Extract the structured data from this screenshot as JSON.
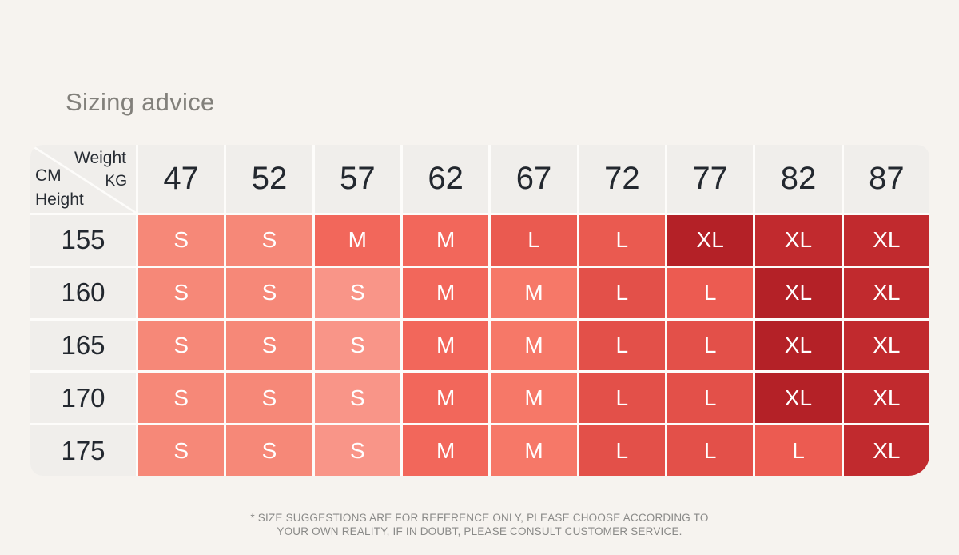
{
  "page": {
    "title": "Sizing advice",
    "background": "#f6f3ef"
  },
  "table": {
    "corner": {
      "top": "Weight",
      "left": "CM",
      "right": "KG",
      "bottom": "Height"
    },
    "weight_columns": [
      "47",
      "52",
      "57",
      "62",
      "67",
      "72",
      "77",
      "82",
      "87"
    ],
    "height_rows": [
      "155",
      "160",
      "165",
      "170",
      "175"
    ],
    "cells": [
      [
        {
          "size": "S",
          "color": "#f68878"
        },
        {
          "size": "S",
          "color": "#f68878"
        },
        {
          "size": "M",
          "color": "#f2675b"
        },
        {
          "size": "M",
          "color": "#f2675b"
        },
        {
          "size": "L",
          "color": "#ea5a50"
        },
        {
          "size": "L",
          "color": "#ea5a50"
        },
        {
          "size": "XL",
          "color": "#b42127"
        },
        {
          "size": "XL",
          "color": "#c12a2e"
        },
        {
          "size": "XL",
          "color": "#c12a2e"
        }
      ],
      [
        {
          "size": "S",
          "color": "#f68878"
        },
        {
          "size": "S",
          "color": "#f68878"
        },
        {
          "size": "S",
          "color": "#f99588"
        },
        {
          "size": "M",
          "color": "#f2675b"
        },
        {
          "size": "M",
          "color": "#f67868"
        },
        {
          "size": "L",
          "color": "#e35049"
        },
        {
          "size": "L",
          "color": "#ec5b51"
        },
        {
          "size": "XL",
          "color": "#b42127"
        },
        {
          "size": "XL",
          "color": "#c12a2e"
        }
      ],
      [
        {
          "size": "S",
          "color": "#f68878"
        },
        {
          "size": "S",
          "color": "#f68878"
        },
        {
          "size": "S",
          "color": "#f99588"
        },
        {
          "size": "M",
          "color": "#f2675b"
        },
        {
          "size": "M",
          "color": "#f67868"
        },
        {
          "size": "L",
          "color": "#e35049"
        },
        {
          "size": "L",
          "color": "#e35049"
        },
        {
          "size": "XL",
          "color": "#b42127"
        },
        {
          "size": "XL",
          "color": "#c12a2e"
        }
      ],
      [
        {
          "size": "S",
          "color": "#f68878"
        },
        {
          "size": "S",
          "color": "#f68878"
        },
        {
          "size": "S",
          "color": "#f99588"
        },
        {
          "size": "M",
          "color": "#f2675b"
        },
        {
          "size": "M",
          "color": "#f67868"
        },
        {
          "size": "L",
          "color": "#e35049"
        },
        {
          "size": "L",
          "color": "#e35049"
        },
        {
          "size": "XL",
          "color": "#b42127"
        },
        {
          "size": "XL",
          "color": "#c12a2e"
        }
      ],
      [
        {
          "size": "S",
          "color": "#f68878"
        },
        {
          "size": "S",
          "color": "#f68878"
        },
        {
          "size": "S",
          "color": "#f99588"
        },
        {
          "size": "M",
          "color": "#f2675b"
        },
        {
          "size": "M",
          "color": "#f67868"
        },
        {
          "size": "L",
          "color": "#e35049"
        },
        {
          "size": "L",
          "color": "#e35049"
        },
        {
          "size": "L",
          "color": "#ec5b51"
        },
        {
          "size": "XL",
          "color": "#c12a2e"
        }
      ]
    ],
    "header_bg": "#f0eeeb",
    "divider_color": "#fdfcfa"
  },
  "chart_data": {
    "type": "heatmap",
    "title": "Sizing advice",
    "x_axis_label": "Weight KG",
    "y_axis_label": "Height CM",
    "x_ticks": [
      47,
      52,
      57,
      62,
      67,
      72,
      77,
      82,
      87
    ],
    "y_ticks": [
      155,
      160,
      165,
      170,
      175
    ],
    "values": [
      [
        "S",
        "S",
        "M",
        "M",
        "L",
        "L",
        "XL",
        "XL",
        "XL"
      ],
      [
        "S",
        "S",
        "S",
        "M",
        "M",
        "L",
        "L",
        "XL",
        "XL"
      ],
      [
        "S",
        "S",
        "S",
        "M",
        "M",
        "L",
        "L",
        "XL",
        "XL"
      ],
      [
        "S",
        "S",
        "S",
        "M",
        "M",
        "L",
        "L",
        "XL",
        "XL"
      ],
      [
        "S",
        "S",
        "S",
        "M",
        "M",
        "L",
        "L",
        "L",
        "XL"
      ]
    ],
    "size_base_colors": {
      "S": "#f68878",
      "M": "#f2675b",
      "L": "#e35049",
      "XL": "#c12a2e"
    },
    "legend": "none",
    "grid": "white 3px separators"
  },
  "footer": {
    "line1": "* SIZE SUGGESTIONS ARE FOR REFERENCE ONLY, PLEASE CHOOSE ACCORDING TO",
    "line2": "YOUR OWN REALITY, IF IN DOUBT, PLEASE CONSULT CUSTOMER SERVICE."
  }
}
